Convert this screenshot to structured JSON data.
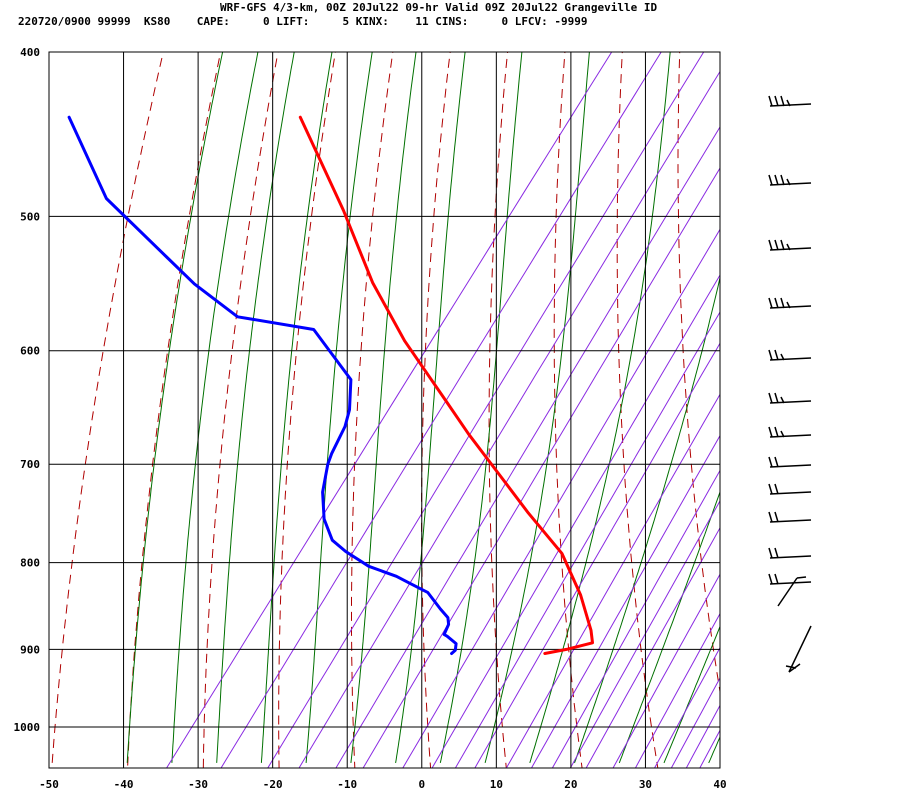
{
  "header": {
    "line1": "WRF-GFS 4/3-km, 00Z 20Jul22 09-hr Valid 09Z 20Jul22 Grangeville ID",
    "line2": "220720/0900 99999  KS80    CAPE:     0 LIFT:     5 KINX:    11 CINS:     0 LFCV: -9999"
  },
  "chart_data": {
    "type": "line",
    "xlim": [
      -50,
      40
    ],
    "ylim": [
      400,
      1040
    ],
    "y_scale": "log",
    "x_ticks": [
      -50,
      -40,
      -30,
      -20,
      -10,
      0,
      10,
      20,
      30,
      40
    ],
    "y_ticks": [
      400,
      500,
      600,
      700,
      800,
      900,
      1000
    ],
    "grid": true,
    "series": [
      {
        "color": "#ff0000",
        "points": [
          [
            -16.3,
            437
          ],
          [
            -10.5,
            496
          ],
          [
            -6.6,
            547
          ],
          [
            -2.3,
            592
          ],
          [
            3.1,
            641
          ],
          [
            6.3,
            672
          ],
          [
            10.2,
            708
          ],
          [
            14.3,
            748
          ],
          [
            18.8,
            790
          ],
          [
            21.3,
            836
          ],
          [
            22.7,
            877
          ],
          [
            22.9,
            892
          ],
          [
            19.4,
            900
          ],
          [
            16.5,
            905
          ]
        ]
      },
      {
        "color": "#0000ff",
        "points": [
          [
            -47.3,
            437
          ],
          [
            -42.3,
            488
          ],
          [
            -34.3,
            528
          ],
          [
            -30.5,
            548
          ],
          [
            -24.7,
            573
          ],
          [
            -14.5,
            583
          ],
          [
            -9.5,
            624
          ],
          [
            -9.7,
            650
          ],
          [
            -10.3,
            665
          ],
          [
            -12.1,
            690
          ],
          [
            -12.6,
            700
          ],
          [
            -13.3,
            727
          ],
          [
            -13.1,
            754
          ],
          [
            -12.0,
            776
          ],
          [
            -10.2,
            788
          ],
          [
            -7.1,
            804
          ],
          [
            -3.4,
            815
          ],
          [
            -1.8,
            822
          ],
          [
            0.8,
            833
          ],
          [
            2.5,
            852
          ],
          [
            3.5,
            862
          ],
          [
            3.6,
            870
          ],
          [
            3.0,
            882
          ],
          [
            3.4,
            884
          ],
          [
            4.6,
            893
          ],
          [
            4.5,
            901
          ],
          [
            4.0,
            905
          ]
        ]
      }
    ]
  }
}
